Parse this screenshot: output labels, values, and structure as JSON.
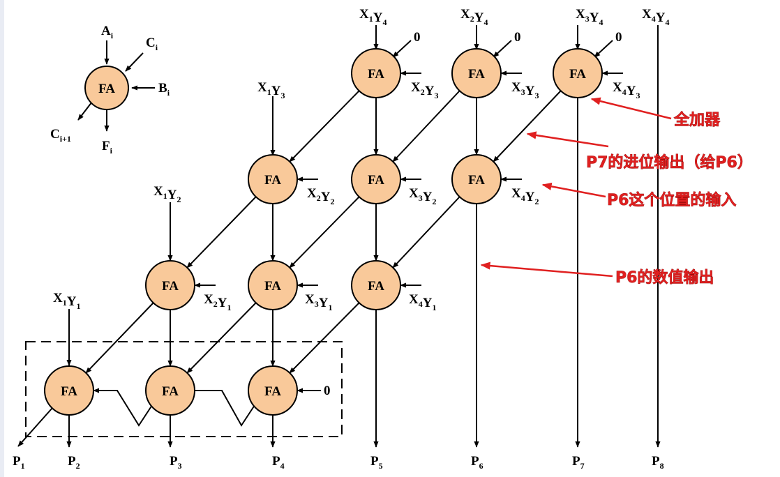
{
  "legend": {
    "node_label": "FA",
    "in_a": {
      "main": "A",
      "sub": "i"
    },
    "in_c": {
      "main": "C",
      "sub": "i"
    },
    "in_b": {
      "main": "B",
      "sub": "i"
    },
    "out_c": {
      "main": "C",
      "sub": "i+1"
    },
    "out_f": {
      "main": "F",
      "sub": "i"
    }
  },
  "node_label": "FA",
  "zero_label": "0",
  "colors": {
    "node_fill": "#f9c99a",
    "node_stroke": "#000000",
    "annotation_text": "#e02020",
    "annotation_arrow": "#e02020"
  },
  "inputs_top": [
    {
      "id": "x1y4",
      "text": [
        [
          "X",
          "1"
        ],
        [
          "Y",
          "4"
        ]
      ]
    },
    {
      "id": "x2y4",
      "text": [
        [
          "X",
          "2"
        ],
        [
          "Y",
          "4"
        ]
      ]
    },
    {
      "id": "x3y4",
      "text": [
        [
          "X",
          "3"
        ],
        [
          "Y",
          "4"
        ]
      ]
    },
    {
      "id": "x4y4",
      "text": [
        [
          "X",
          "4"
        ],
        [
          "Y",
          "4"
        ]
      ]
    },
    {
      "id": "x1y3",
      "text": [
        [
          "X",
          "1"
        ],
        [
          "Y",
          "3"
        ]
      ]
    },
    {
      "id": "x1y2",
      "text": [
        [
          "X",
          "1"
        ],
        [
          "Y",
          "2"
        ]
      ]
    },
    {
      "id": "x1y1",
      "text": [
        [
          "X",
          "1"
        ],
        [
          "Y",
          "1"
        ]
      ]
    }
  ],
  "inputs_side": [
    {
      "id": "x2y3",
      "text": [
        [
          "X",
          "2"
        ],
        [
          "Y",
          "3"
        ]
      ]
    },
    {
      "id": "x3y3",
      "text": [
        [
          "X",
          "3"
        ],
        [
          "Y",
          "3"
        ]
      ]
    },
    {
      "id": "x4y3",
      "text": [
        [
          "X",
          "4"
        ],
        [
          "Y",
          "3"
        ]
      ]
    },
    {
      "id": "x2y2",
      "text": [
        [
          "X",
          "2"
        ],
        [
          "Y",
          "2"
        ]
      ]
    },
    {
      "id": "x3y2",
      "text": [
        [
          "X",
          "3"
        ],
        [
          "Y",
          "2"
        ]
      ]
    },
    {
      "id": "x4y2",
      "text": [
        [
          "X",
          "4"
        ],
        [
          "Y",
          "2"
        ]
      ]
    },
    {
      "id": "x2y1",
      "text": [
        [
          "X",
          "2"
        ],
        [
          "Y",
          "1"
        ]
      ]
    },
    {
      "id": "x3y1",
      "text": [
        [
          "X",
          "3"
        ],
        [
          "Y",
          "1"
        ]
      ]
    },
    {
      "id": "x4y1",
      "text": [
        [
          "X",
          "4"
        ],
        [
          "Y",
          "1"
        ]
      ]
    }
  ],
  "outputs": [
    {
      "id": "p1",
      "main": "P",
      "sub": "1"
    },
    {
      "id": "p2",
      "main": "P",
      "sub": "2"
    },
    {
      "id": "p3",
      "main": "P",
      "sub": "3"
    },
    {
      "id": "p4",
      "main": "P",
      "sub": "4"
    },
    {
      "id": "p5",
      "main": "P",
      "sub": "5"
    },
    {
      "id": "p6",
      "main": "P",
      "sub": "6"
    },
    {
      "id": "p7",
      "main": "P",
      "sub": "7"
    },
    {
      "id": "p8",
      "main": "P",
      "sub": "8"
    }
  ],
  "annotations": {
    "full_adder": "全加器",
    "p7_carry": "P7的进位输出（给P6）",
    "p6_input": "P6这个位置的输入",
    "p6_value": "P6的数值输出"
  }
}
